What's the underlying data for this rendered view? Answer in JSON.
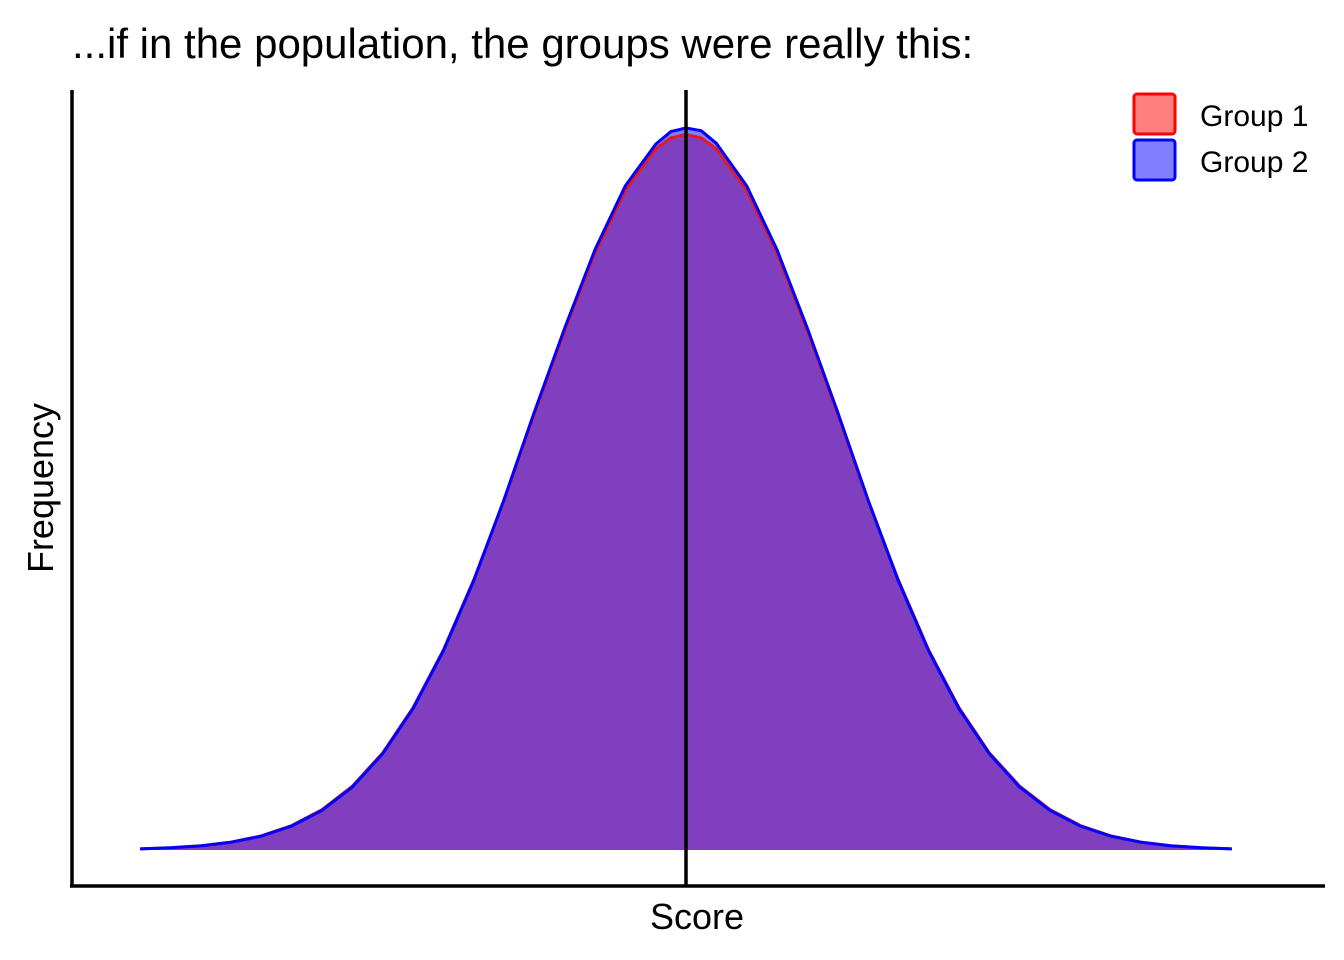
{
  "chart_data": {
    "type": "area",
    "title": "...if in the population, the groups were really this:",
    "xlabel": "Score",
    "ylabel": "Frequency",
    "x_ticks_shown": false,
    "y_ticks_shown": false,
    "grid": false,
    "legend_position": "top-right",
    "xlim": [
      -4.05,
      4.05
    ],
    "ylim": [
      0,
      0.45
    ],
    "x": [
      -3.6,
      -3.4,
      -3.2,
      -3.0,
      -2.8,
      -2.6,
      -2.4,
      -2.2,
      -2.0,
      -1.8,
      -1.6,
      -1.4,
      -1.2,
      -1.0,
      -0.8,
      -0.6,
      -0.4,
      -0.2,
      -0.1,
      0.0,
      0.1,
      0.2,
      0.4,
      0.6,
      0.8,
      1.0,
      1.2,
      1.4,
      1.6,
      1.8,
      2.0,
      2.2,
      2.4,
      2.6,
      2.8,
      3.0,
      3.2,
      3.4,
      3.6
    ],
    "series": [
      {
        "name": "Group 1",
        "fill": "#ff0000",
        "stroke": "#e41a1c",
        "values": [
          0.0006,
          0.0012,
          0.0024,
          0.0044,
          0.0079,
          0.0136,
          0.0224,
          0.0355,
          0.054,
          0.079,
          0.111,
          0.15,
          0.194,
          0.242,
          0.288,
          0.331,
          0.366,
          0.389,
          0.395,
          0.397,
          0.395,
          0.389,
          0.366,
          0.331,
          0.288,
          0.242,
          0.194,
          0.15,
          0.111,
          0.079,
          0.054,
          0.0355,
          0.0224,
          0.0136,
          0.0079,
          0.0044,
          0.0024,
          0.0012,
          0.0006
        ]
      },
      {
        "name": "Group 2",
        "fill": "#0000ff",
        "stroke": "#0000ff",
        "values": [
          0.0006,
          0.0012,
          0.0023,
          0.0043,
          0.0077,
          0.0133,
          0.022,
          0.035,
          0.0535,
          0.0785,
          0.1105,
          0.1495,
          0.1945,
          0.243,
          0.2895,
          0.333,
          0.3685,
          0.3915,
          0.3985,
          0.4005,
          0.399,
          0.392,
          0.3685,
          0.333,
          0.2895,
          0.243,
          0.1945,
          0.1495,
          0.1105,
          0.0785,
          0.0535,
          0.035,
          0.022,
          0.0133,
          0.0077,
          0.0043,
          0.0023,
          0.0012,
          0.0006
        ]
      }
    ],
    "vline_x": 0,
    "colors": {
      "overlap_fill": "#7f3fbf",
      "vline": "#000000",
      "axis": "#000000"
    }
  }
}
